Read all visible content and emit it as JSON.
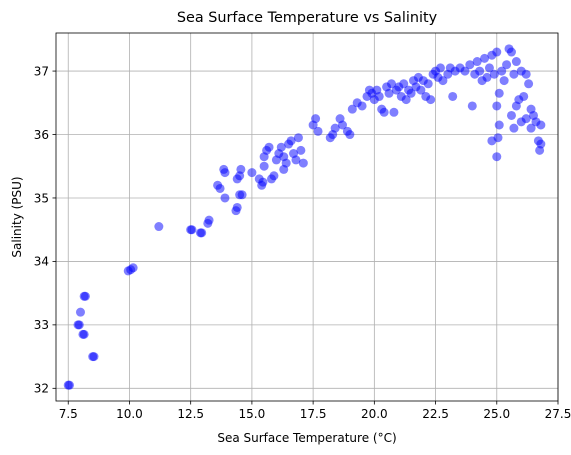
{
  "chart_data": {
    "type": "scatter",
    "title": "Sea Surface Temperature vs Salinity",
    "xlabel": "Sea Surface Temperature (°C)",
    "ylabel": "Salinity (PSU)",
    "xlim": [
      7.0,
      27.5
    ],
    "ylim": [
      31.8,
      37.6
    ],
    "xticks": [
      7.5,
      10.0,
      12.5,
      15.0,
      17.5,
      20.0,
      22.5,
      25.0,
      27.5
    ],
    "xtick_labels": [
      "7.5",
      "10.0",
      "12.5",
      "15.0",
      "17.5",
      "20.0",
      "22.5",
      "25.0",
      "27.5"
    ],
    "yticks": [
      32,
      33,
      34,
      35,
      36,
      37
    ],
    "ytick_labels": [
      "32",
      "33",
      "34",
      "35",
      "36",
      "37"
    ],
    "grid": true,
    "marker_color": "#0000ff",
    "marker_alpha": 0.5,
    "points": [
      [
        7.5,
        32.05
      ],
      [
        7.55,
        32.05
      ],
      [
        7.9,
        33.0
      ],
      [
        7.95,
        33.0
      ],
      [
        8.0,
        33.2
      ],
      [
        8.1,
        32.85
      ],
      [
        8.15,
        32.85
      ],
      [
        8.15,
        33.45
      ],
      [
        8.2,
        33.45
      ],
      [
        8.5,
        32.5
      ],
      [
        8.55,
        32.5
      ],
      [
        9.95,
        33.85
      ],
      [
        10.05,
        33.87
      ],
      [
        10.15,
        33.9
      ],
      [
        11.2,
        34.55
      ],
      [
        12.5,
        34.5
      ],
      [
        12.55,
        34.5
      ],
      [
        12.9,
        34.45
      ],
      [
        12.95,
        34.45
      ],
      [
        13.2,
        34.6
      ],
      [
        13.25,
        34.65
      ],
      [
        13.6,
        35.2
      ],
      [
        13.7,
        35.15
      ],
      [
        13.9,
        35.0
      ],
      [
        13.85,
        35.45
      ],
      [
        13.9,
        35.4
      ],
      [
        14.35,
        34.8
      ],
      [
        14.4,
        34.85
      ],
      [
        14.4,
        35.3
      ],
      [
        14.5,
        35.35
      ],
      [
        14.55,
        35.45
      ],
      [
        14.5,
        35.05
      ],
      [
        14.6,
        35.05
      ],
      [
        15.0,
        35.4
      ],
      [
        15.3,
        35.3
      ],
      [
        15.4,
        35.2
      ],
      [
        15.45,
        35.25
      ],
      [
        15.5,
        35.5
      ],
      [
        15.5,
        35.65
      ],
      [
        15.6,
        35.75
      ],
      [
        15.7,
        35.8
      ],
      [
        15.8,
        35.3
      ],
      [
        15.9,
        35.35
      ],
      [
        16.0,
        35.6
      ],
      [
        16.1,
        35.7
      ],
      [
        16.2,
        35.8
      ],
      [
        16.3,
        35.65
      ],
      [
        16.3,
        35.45
      ],
      [
        16.4,
        35.55
      ],
      [
        16.5,
        35.85
      ],
      [
        16.6,
        35.9
      ],
      [
        16.7,
        35.7
      ],
      [
        16.8,
        35.6
      ],
      [
        16.9,
        35.95
      ],
      [
        17.0,
        35.75
      ],
      [
        17.1,
        35.55
      ],
      [
        17.5,
        36.15
      ],
      [
        17.6,
        36.25
      ],
      [
        17.7,
        36.05
      ],
      [
        18.2,
        35.95
      ],
      [
        18.3,
        36.0
      ],
      [
        18.4,
        36.1
      ],
      [
        18.6,
        36.25
      ],
      [
        18.7,
        36.15
      ],
      [
        18.9,
        36.05
      ],
      [
        19.0,
        36.0
      ],
      [
        19.1,
        36.4
      ],
      [
        19.3,
        36.5
      ],
      [
        19.5,
        36.45
      ],
      [
        19.7,
        36.6
      ],
      [
        19.8,
        36.7
      ],
      [
        19.9,
        36.65
      ],
      [
        20.0,
        36.55
      ],
      [
        20.1,
        36.7
      ],
      [
        20.2,
        36.6
      ],
      [
        20.3,
        36.4
      ],
      [
        20.4,
        36.35
      ],
      [
        20.5,
        36.75
      ],
      [
        20.6,
        36.65
      ],
      [
        20.7,
        36.8
      ],
      [
        20.8,
        36.35
      ],
      [
        20.9,
        36.7
      ],
      [
        21.0,
        36.75
      ],
      [
        21.1,
        36.6
      ],
      [
        21.2,
        36.8
      ],
      [
        21.3,
        36.55
      ],
      [
        21.4,
        36.7
      ],
      [
        21.5,
        36.65
      ],
      [
        21.6,
        36.85
      ],
      [
        21.7,
        36.75
      ],
      [
        21.8,
        36.9
      ],
      [
        21.9,
        36.7
      ],
      [
        22.0,
        36.85
      ],
      [
        22.1,
        36.6
      ],
      [
        22.2,
        36.8
      ],
      [
        22.3,
        36.55
      ],
      [
        22.4,
        36.95
      ],
      [
        22.5,
        37.0
      ],
      [
        22.6,
        36.9
      ],
      [
        22.7,
        37.05
      ],
      [
        22.8,
        36.85
      ],
      [
        23.0,
        36.95
      ],
      [
        23.1,
        37.05
      ],
      [
        23.2,
        36.6
      ],
      [
        23.3,
        37.0
      ],
      [
        23.5,
        37.05
      ],
      [
        23.7,
        37.0
      ],
      [
        23.9,
        37.1
      ],
      [
        24.0,
        36.45
      ],
      [
        24.1,
        36.95
      ],
      [
        24.2,
        37.15
      ],
      [
        24.3,
        37.0
      ],
      [
        24.4,
        36.85
      ],
      [
        24.5,
        37.2
      ],
      [
        24.6,
        36.9
      ],
      [
        24.7,
        37.05
      ],
      [
        24.8,
        37.25
      ],
      [
        24.8,
        35.9
      ],
      [
        24.9,
        36.95
      ],
      [
        25.0,
        37.3
      ],
      [
        25.0,
        35.65
      ],
      [
        25.0,
        36.45
      ],
      [
        25.05,
        35.95
      ],
      [
        25.1,
        36.15
      ],
      [
        25.1,
        36.65
      ],
      [
        25.2,
        37.0
      ],
      [
        25.3,
        36.85
      ],
      [
        25.4,
        37.1
      ],
      [
        25.5,
        37.35
      ],
      [
        25.6,
        37.3
      ],
      [
        25.6,
        36.3
      ],
      [
        25.7,
        36.95
      ],
      [
        25.7,
        36.1
      ],
      [
        25.8,
        37.15
      ],
      [
        25.8,
        36.45
      ],
      [
        25.9,
        36.55
      ],
      [
        26.0,
        37.0
      ],
      [
        26.0,
        36.2
      ],
      [
        26.1,
        36.6
      ],
      [
        26.2,
        36.25
      ],
      [
        26.2,
        36.95
      ],
      [
        26.3,
        36.8
      ],
      [
        26.4,
        36.4
      ],
      [
        26.4,
        36.1
      ],
      [
        26.5,
        36.3
      ],
      [
        26.6,
        36.2
      ],
      [
        26.7,
        35.9
      ],
      [
        26.75,
        35.75
      ],
      [
        26.8,
        36.15
      ],
      [
        26.8,
        35.85
      ]
    ]
  }
}
